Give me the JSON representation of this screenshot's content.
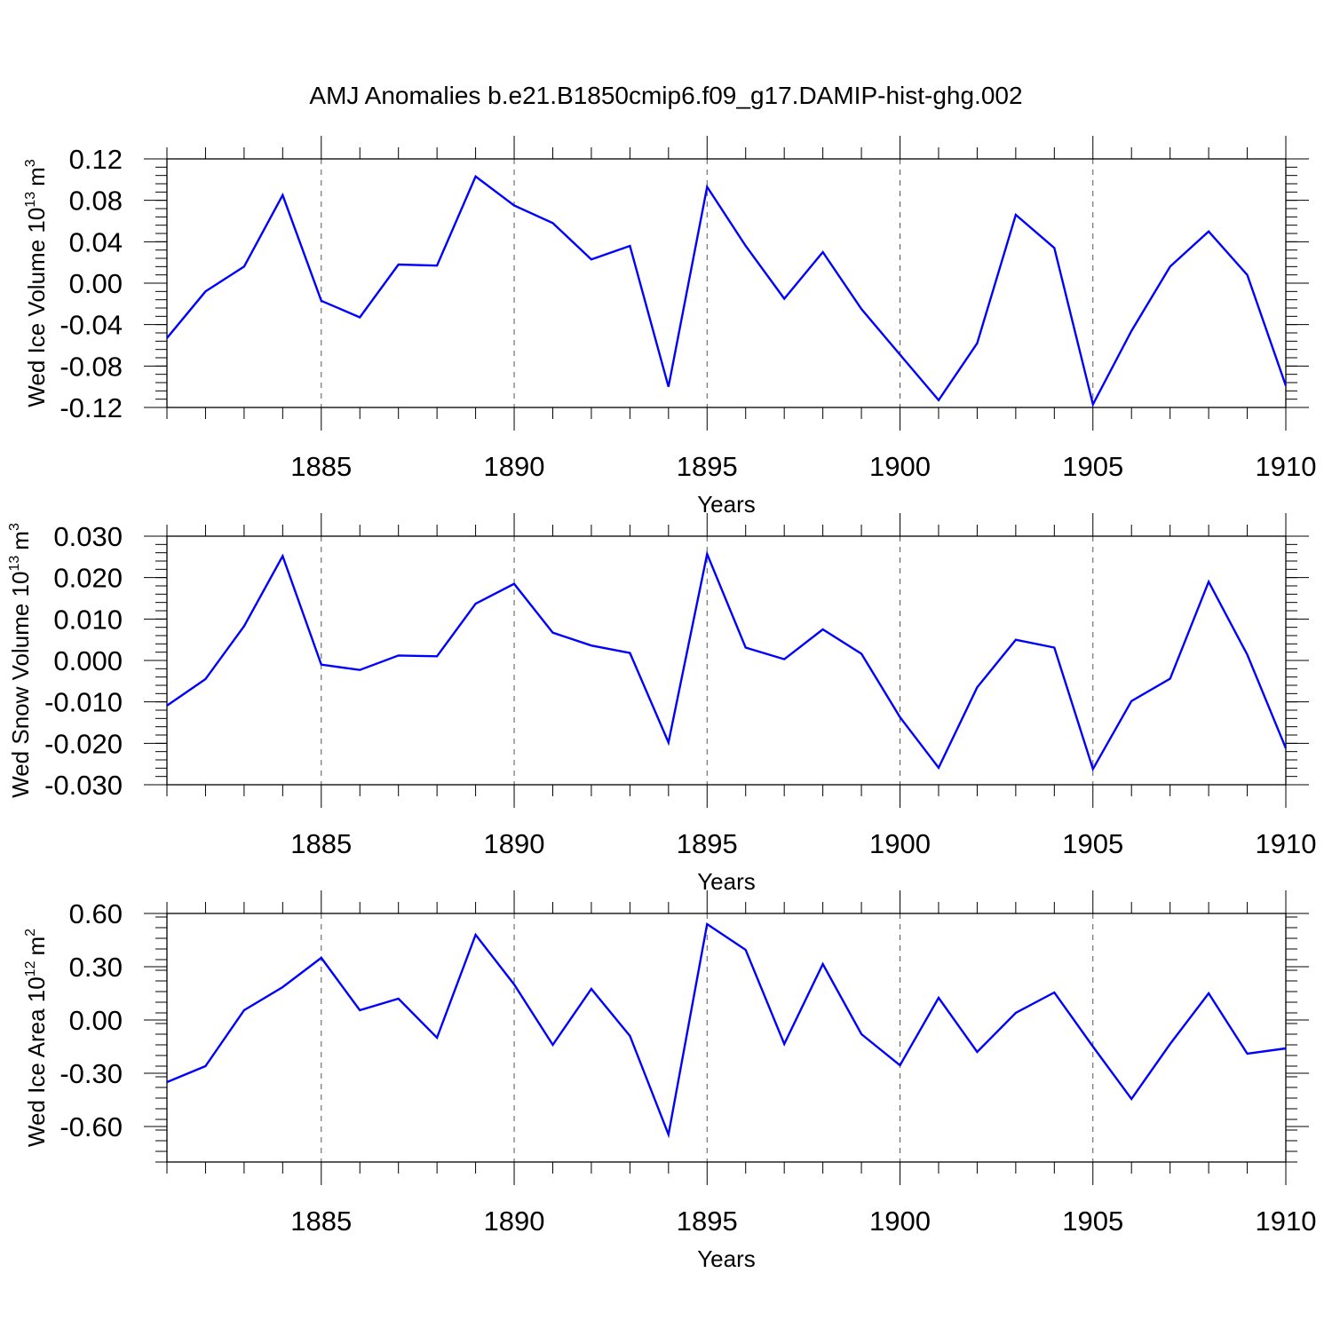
{
  "title": "AMJ Anomalies b.e21.B1850cmip6.f09_g17.DAMIP-hist-ghg.002",
  "colors": {
    "line": "#0000ff",
    "axis": "#000000",
    "grid": "#555555"
  },
  "chart_data": [
    {
      "type": "line",
      "ylabel": "Wed Ice Volume 10",
      "ylabel_exp": "13",
      "ylabel_unit": "m",
      "ylabel_unit_exp": "3",
      "xlabel": "Years",
      "xlim": [
        1881,
        1910
      ],
      "ylim": [
        -0.12,
        0.12
      ],
      "yticks": [
        0.12,
        0.08,
        0.04,
        0.0,
        -0.04,
        -0.08,
        -0.12
      ],
      "ytick_labels": [
        "0.12",
        "0.08",
        "0.04",
        "0.00",
        "-0.04",
        "-0.08",
        "-0.12"
      ],
      "xticks": [
        1885,
        1890,
        1895,
        1900,
        1905,
        1910
      ],
      "xtick_labels": [
        "1885",
        "1890",
        "1895",
        "1900",
        "1905",
        "1910"
      ],
      "grid": "vertical dashed at major x ticks",
      "x": [
        1881,
        1882,
        1883,
        1884,
        1885,
        1886,
        1887,
        1888,
        1889,
        1890,
        1891,
        1892,
        1893,
        1894,
        1895,
        1896,
        1897,
        1898,
        1899,
        1900,
        1901,
        1902,
        1903,
        1904,
        1905,
        1906,
        1907,
        1908,
        1909,
        1910
      ],
      "y": [
        -0.053,
        -0.008,
        0.016,
        0.085,
        -0.017,
        -0.033,
        0.018,
        0.017,
        0.103,
        0.075,
        0.058,
        0.023,
        0.036,
        -0.1,
        0.093,
        0.036,
        -0.015,
        0.03,
        -0.025,
        -0.069,
        -0.113,
        -0.058,
        0.066,
        0.034,
        -0.117,
        -0.046,
        0.016,
        0.05,
        0.008,
        -0.099
      ]
    },
    {
      "type": "line",
      "ylabel": "Wed Snow Volume 10",
      "ylabel_exp": "13",
      "ylabel_unit": "m",
      "ylabel_unit_exp": "3",
      "xlabel": "Years",
      "xlim": [
        1881,
        1910
      ],
      "ylim": [
        -0.03,
        0.03
      ],
      "yticks": [
        0.03,
        0.02,
        0.01,
        0.0,
        -0.01,
        -0.02,
        -0.03
      ],
      "ytick_labels": [
        "0.030",
        "0.020",
        "0.010",
        "0.000",
        "-0.010",
        "-0.020",
        "-0.030"
      ],
      "xticks": [
        1885,
        1890,
        1895,
        1900,
        1905,
        1910
      ],
      "xtick_labels": [
        "1885",
        "1890",
        "1895",
        "1900",
        "1905",
        "1910"
      ],
      "grid": "vertical dashed at major x ticks",
      "x": [
        1881,
        1882,
        1883,
        1884,
        1885,
        1886,
        1887,
        1888,
        1889,
        1890,
        1891,
        1892,
        1893,
        1894,
        1895,
        1896,
        1897,
        1898,
        1899,
        1900,
        1901,
        1902,
        1903,
        1904,
        1905,
        1906,
        1907,
        1908,
        1909,
        1910
      ],
      "y": [
        -0.0109,
        -0.0045,
        0.0083,
        0.0252,
        -0.001,
        -0.0023,
        0.0012,
        0.001,
        0.0137,
        0.0185,
        0.0067,
        0.0036,
        0.0018,
        -0.0198,
        0.0257,
        0.0031,
        0.0003,
        0.0075,
        0.0016,
        -0.0137,
        -0.0259,
        -0.0065,
        0.005,
        0.0031,
        -0.0262,
        -0.0098,
        -0.0044,
        0.019,
        0.0014,
        -0.0212
      ]
    },
    {
      "type": "line",
      "ylabel": "Wed Ice Area 10",
      "ylabel_exp": "12",
      "ylabel_unit": "m",
      "ylabel_unit_exp": "2",
      "xlabel": "Years",
      "xlim": [
        1881,
        1910
      ],
      "ylim": [
        -0.8,
        0.6
      ],
      "yticks": [
        0.6,
        0.3,
        0.0,
        -0.3,
        -0.6
      ],
      "ytick_labels": [
        "0.60",
        "0.30",
        "0.00",
        "-0.30",
        "-0.60"
      ],
      "xticks": [
        1885,
        1890,
        1895,
        1900,
        1905,
        1910
      ],
      "xtick_labels": [
        "1885",
        "1890",
        "1895",
        "1900",
        "1905",
        "1910"
      ],
      "grid": "vertical dashed at major x ticks",
      "x": [
        1881,
        1882,
        1883,
        1884,
        1885,
        1886,
        1887,
        1888,
        1889,
        1890,
        1891,
        1892,
        1893,
        1894,
        1895,
        1896,
        1897,
        1898,
        1899,
        1900,
        1901,
        1902,
        1903,
        1904,
        1905,
        1906,
        1907,
        1908,
        1909,
        1910
      ],
      "y": [
        -0.35,
        -0.26,
        0.055,
        0.185,
        0.35,
        0.055,
        0.12,
        -0.1,
        0.48,
        0.2,
        -0.14,
        0.175,
        -0.09,
        -0.645,
        0.54,
        0.395,
        -0.135,
        0.315,
        -0.08,
        -0.255,
        0.125,
        -0.18,
        0.04,
        0.155,
        -0.15,
        -0.445,
        -0.135,
        0.15,
        -0.19,
        -0.16
      ]
    }
  ]
}
